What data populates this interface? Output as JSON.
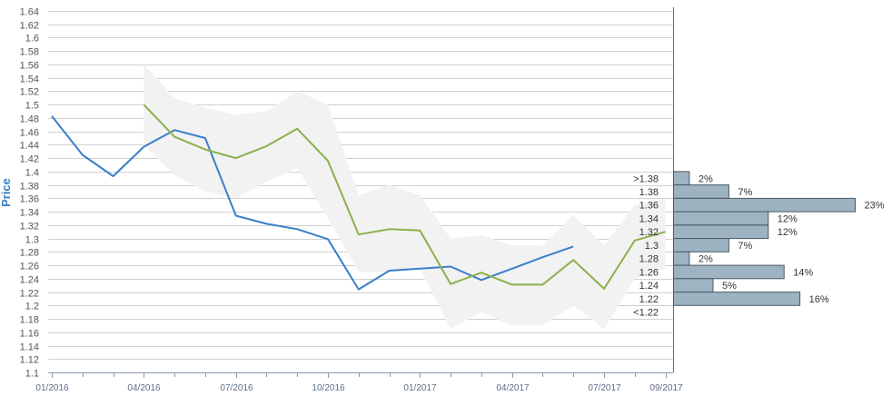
{
  "chart_data": {
    "type": "line",
    "ylabel": "Price",
    "ylim": [
      1.1,
      1.64
    ],
    "y_ticks": [
      "1.1",
      "1.12",
      "1.14",
      "1.16",
      "1.18",
      "1.2",
      "1.22",
      "1.24",
      "1.26",
      "1.28",
      "1.3",
      "1.32",
      "1.34",
      "1.36",
      "1.38",
      "1.4",
      "1.42",
      "1.44",
      "1.46",
      "1.48",
      "1.5",
      "1.52",
      "1.54",
      "1.56",
      "1.58",
      "1.6",
      "1.62",
      "1.64"
    ],
    "x_tick_labels": [
      "01/2016",
      "04/2016",
      "07/2016",
      "10/2016",
      "01/2017",
      "04/2017",
      "07/2017",
      "09/2017"
    ],
    "x_label_months": [
      0,
      3,
      6,
      9,
      12,
      15,
      18,
      20
    ],
    "x_minor_tick_months": [
      1,
      2,
      4,
      5,
      7,
      8,
      10,
      11,
      13,
      14,
      16,
      17,
      19
    ],
    "grid": true,
    "series": [
      {
        "color": "#3a7fc9",
        "x": [
          0,
          1,
          2,
          3,
          4,
          5,
          6,
          7,
          8,
          9,
          10,
          11,
          12,
          13,
          14,
          15,
          16,
          17
        ],
        "values": [
          1.483,
          1.425,
          1.393,
          1.437,
          1.462,
          1.45,
          1.334,
          1.322,
          1.314,
          1.299,
          1.224,
          1.252,
          1.255,
          1.258,
          1.238,
          1.255,
          1.272,
          1.288
        ]
      },
      {
        "color": "#8cb04a",
        "x": [
          3,
          4,
          5,
          6,
          7,
          8,
          9,
          10,
          11,
          12,
          13,
          14,
          15,
          16,
          17,
          18,
          19,
          20
        ],
        "values": [
          1.5,
          1.452,
          1.433,
          1.42,
          1.438,
          1.464,
          1.416,
          1.306,
          1.314,
          1.312,
          1.232,
          1.249,
          1.231,
          1.231,
          1.268,
          1.225,
          1.297,
          1.31
        ]
      }
    ],
    "band": {
      "color": "#f2f2f2",
      "x": [
        3,
        4,
        5,
        6,
        7,
        8,
        9,
        10,
        11,
        12,
        13,
        14,
        15,
        16,
        17,
        18,
        19,
        20
      ],
      "upper": [
        1.56,
        1.51,
        1.495,
        1.485,
        1.49,
        1.52,
        1.5,
        1.365,
        1.38,
        1.365,
        1.3,
        1.305,
        1.29,
        1.29,
        1.335,
        1.29,
        1.35,
        1.36
      ],
      "lower": [
        1.44,
        1.395,
        1.37,
        1.36,
        1.385,
        1.405,
        1.33,
        1.25,
        1.25,
        1.255,
        1.165,
        1.19,
        1.17,
        1.17,
        1.2,
        1.165,
        1.24,
        1.255
      ]
    },
    "distribution": {
      "bar_color": "#9db3c2",
      "bar_border": "#4a5a66",
      "bins": [
        {
          "label": ">1.38",
          "low": 1.38,
          "high": 1.4,
          "percent": "2%",
          "value": 2
        },
        {
          "label": "1.38",
          "low": 1.36,
          "high": 1.38,
          "percent": "7%",
          "value": 7
        },
        {
          "label": "1.36",
          "low": 1.34,
          "high": 1.36,
          "percent": "23%",
          "value": 23
        },
        {
          "label": "1.34",
          "low": 1.32,
          "high": 1.34,
          "percent": "12%",
          "value": 12
        },
        {
          "label": "1.32",
          "low": 1.3,
          "high": 1.32,
          "percent": "12%",
          "value": 12
        },
        {
          "label": "1.3",
          "low": 1.28,
          "high": 1.3,
          "percent": "7%",
          "value": 7
        },
        {
          "label": "1.28",
          "low": 1.26,
          "high": 1.28,
          "percent": "2%",
          "value": 2
        },
        {
          "label": "1.26",
          "low": 1.24,
          "high": 1.26,
          "percent": "14%",
          "value": 14
        },
        {
          "label": "1.24",
          "low": 1.22,
          "high": 1.24,
          "percent": "5%",
          "value": 5
        },
        {
          "label": "1.22",
          "low": 1.2,
          "high": 1.22,
          "percent": "16%",
          "value": 16
        },
        {
          "label": "<1.22",
          "low": 1.19,
          "high": 1.19,
          "percent": "",
          "value": 0
        }
      ]
    }
  }
}
